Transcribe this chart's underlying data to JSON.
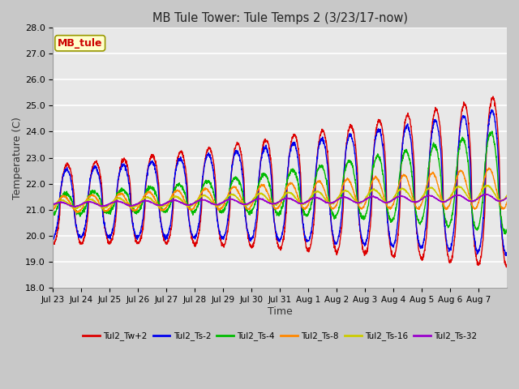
{
  "title": "MB Tule Tower: Tule Temps 2 (3/23/17-now)",
  "xlabel": "Time",
  "ylabel": "Temperature (C)",
  "ylim": [
    18.0,
    28.0
  ],
  "yticks": [
    18.0,
    19.0,
    20.0,
    21.0,
    22.0,
    23.0,
    24.0,
    25.0,
    26.0,
    27.0,
    28.0
  ],
  "xtick_labels": [
    "Jul 23",
    "Jul 24",
    "Jul 25",
    "Jul 26",
    "Jul 27",
    "Jul 28",
    "Jul 29",
    "Jul 30",
    "Jul 31",
    "Aug 1",
    "Aug 2",
    "Aug 3",
    "Aug 4",
    "Aug 5",
    "Aug 6",
    "Aug 7"
  ],
  "series": {
    "Tul2_Tw+2": {
      "color": "#dd0000",
      "lw": 1.0
    },
    "Tul2_Ts-2": {
      "color": "#0000ee",
      "lw": 1.0
    },
    "Tul2_Ts-4": {
      "color": "#00bb00",
      "lw": 1.0
    },
    "Tul2_Ts-8": {
      "color": "#ff8800",
      "lw": 1.0
    },
    "Tul2_Ts-16": {
      "color": "#cccc00",
      "lw": 1.0
    },
    "Tul2_Ts-32": {
      "color": "#9900cc",
      "lw": 1.0
    }
  },
  "legend_label": "MB_tule",
  "legend_box_facecolor": "#ffffcc",
  "legend_text_color": "#cc0000",
  "legend_edge_color": "#999900",
  "plot_bg_color": "#e8e8e8",
  "fig_bg_color": "#c8c8c8",
  "grid_color": "#ffffff",
  "n_days": 16,
  "base_mean": 21.2,
  "trend_total": 0.9
}
